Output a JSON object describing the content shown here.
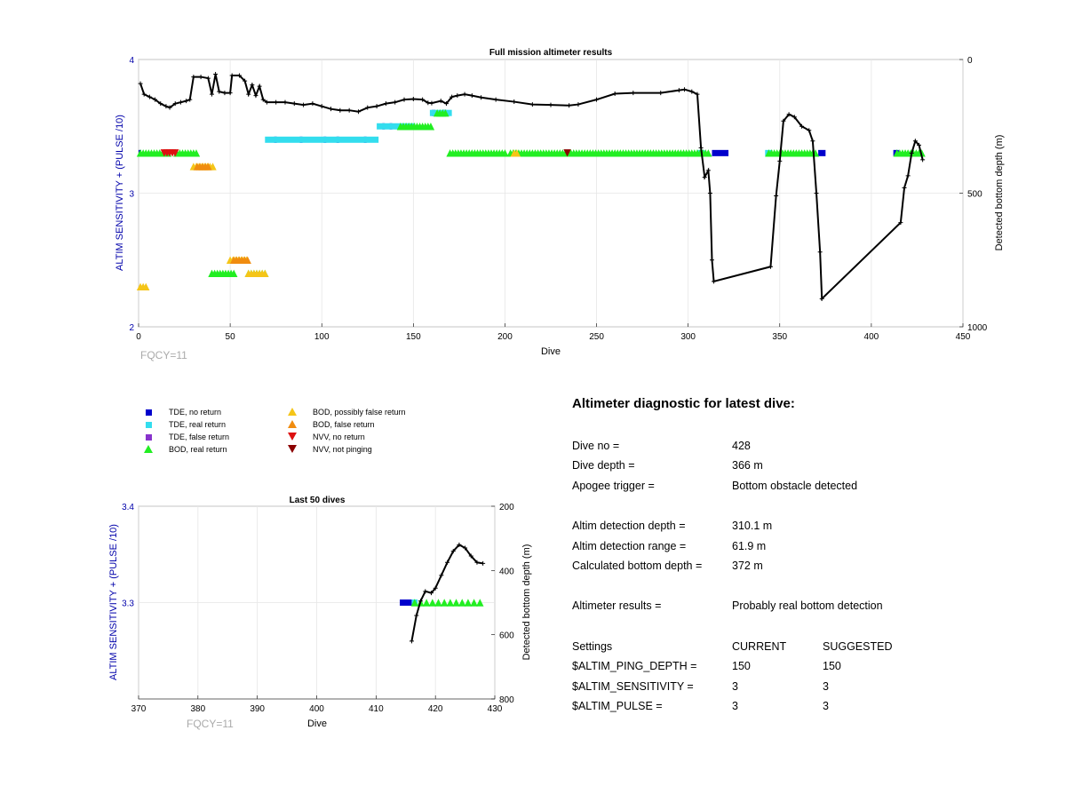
{
  "main_chart": {
    "title": "Full mission altimeter results",
    "xlabel": "Dive",
    "ylabel_left": "ALTIM SENSITIVITY + (PULSE /10)",
    "ylabel_right": "Detected bottom depth (m)",
    "xticks": [
      "0",
      "50",
      "100",
      "150",
      "200",
      "250",
      "300",
      "350",
      "400",
      "450"
    ],
    "yticks_left": [
      "2",
      "3",
      "4"
    ],
    "yticks_right": [
      "0",
      "500",
      "1000"
    ],
    "fqcy": "FQCY=11"
  },
  "bottom_chart": {
    "title": "Last 50 dives",
    "xlabel": "Dive",
    "ylabel_left": "ALTIM SENSITIVITY + (PULSE /10)",
    "ylabel_right": "Detected bottom depth (m)",
    "xticks": [
      "370",
      "380",
      "390",
      "400",
      "410",
      "420",
      "430"
    ],
    "yticks_left": [
      "3.3",
      "3.4"
    ],
    "yticks_right": [
      "200",
      "400",
      "600",
      "800"
    ],
    "fqcy": "FQCY=11"
  },
  "legend": [
    {
      "label": "TDE, no return",
      "symbol": "square",
      "color": "#0000cc"
    },
    {
      "label": "TDE, real return",
      "symbol": "square",
      "color": "#33ddee"
    },
    {
      "label": "TDE, false return",
      "symbol": "square",
      "color": "#8833cc"
    },
    {
      "label": "BOD, real return",
      "symbol": "triangle-up",
      "color": "#22ee22"
    },
    {
      "label": "BOD, possibly false return",
      "symbol": "triangle-up",
      "color": "#f5c518"
    },
    {
      "label": "BOD, false return",
      "symbol": "triangle-up",
      "color": "#f08c10"
    },
    {
      "label": "NVV, no return",
      "symbol": "triangle-down",
      "color": "#dd1111"
    },
    {
      "label": "NVV, not pinging",
      "symbol": "triangle-down",
      "color": "#8b0000"
    }
  ],
  "diagnostic": {
    "title": "Altimeter diagnostic for latest dive:",
    "dive_no_label": "Dive no =",
    "dive_no": "428",
    "dive_depth_label": "Dive depth =",
    "dive_depth": "366 m",
    "apogee_label": "Apogee trigger =",
    "apogee": "Bottom obstacle detected",
    "altim_depth_label": "Altim detection depth =",
    "altim_depth": "310.1 m",
    "altim_range_label": "Altim detection range =",
    "altim_range": "61.9 m",
    "calc_depth_label": "Calculated bottom depth =",
    "calc_depth": "372 m",
    "results_label": "Altimeter results =",
    "results": "Probably real bottom detection",
    "settings_label": "Settings",
    "current_label": "CURRENT",
    "suggested_label": "SUGGESTED",
    "ping_depth_label": "$ALTIM_PING_DEPTH =",
    "ping_depth_current": "150",
    "ping_depth_suggested": "150",
    "sensitivity_label": "$ALTIM_SENSITIVITY =",
    "sensitivity_current": "3",
    "sensitivity_suggested": "3",
    "pulse_label": "$ALTIM_PULSE =",
    "pulse_current": "3",
    "pulse_suggested": "3"
  },
  "chart_data": [
    {
      "type": "scatter",
      "title": "Full mission altimeter results",
      "xlabel": "Dive",
      "ylabel": "ALTIM SENSITIVITY + (PULSE /10)",
      "y2label": "Detected bottom depth (m)",
      "xlim": [
        0,
        450
      ],
      "ylim": [
        2,
        4
      ],
      "y2lim": [
        0,
        1000
      ],
      "grid": true,
      "series": [
        {
          "name": "TDE, no return",
          "color": "#0000cc",
          "segments": [
            [
              0,
              1,
              3.3
            ],
            [
              133,
              134,
              3.5
            ],
            [
              137,
              138,
              3.5
            ],
            [
              160,
              162,
              3.6
            ],
            [
              166,
              168,
              3.6
            ],
            [
              74,
              75,
              3.4
            ],
            [
              88,
              89,
              3.4
            ],
            [
              101,
              102,
              3.4
            ],
            [
              108,
              109,
              3.4
            ],
            [
              123,
              124,
              3.4
            ],
            [
              313,
              322,
              3.3
            ],
            [
              371,
              375,
              3.3
            ],
            [
              412,
              415,
              3.3
            ]
          ]
        },
        {
          "name": "TDE, real return",
          "color": "#33ddee",
          "segments": [
            [
              69,
              131,
              3.4
            ],
            [
              130,
              151,
              3.5
            ],
            [
              159,
              171,
              3.6
            ],
            [
              305,
              309,
              3.3
            ],
            [
              342,
              346,
              3.3
            ]
          ]
        },
        {
          "name": "BOD, real return",
          "color": "#22ee22",
          "segments": [
            [
              1,
              16,
              3.3
            ],
            [
              21,
              32,
              3.3
            ],
            [
              40,
              52,
              2.4
            ],
            [
              60,
              70,
              2.4
            ],
            [
              143,
              160,
              3.5
            ],
            [
              163,
              168,
              3.6
            ],
            [
              170,
              200,
              3.3
            ],
            [
              203,
              312,
              3.3
            ],
            [
              344,
              370,
              3.3
            ],
            [
              414,
              428,
              3.3
            ]
          ]
        },
        {
          "name": "BOD, possibly false return",
          "color": "#f5c518",
          "segments": [
            [
              1,
              4,
              2.3
            ],
            [
              30,
              41,
              3.2
            ],
            [
              50,
              60,
              2.5
            ],
            [
              60,
              70,
              2.4
            ],
            [
              205,
              207,
              3.3
            ]
          ]
        },
        {
          "name": "BOD, false return",
          "color": "#f08c10",
          "segments": [
            [
              32,
              38,
              3.2
            ],
            [
              52,
              60,
              2.5
            ]
          ]
        },
        {
          "name": "NVV, no return",
          "color": "#dd1111",
          "segments": [
            [
              14,
              20,
              3.3
            ]
          ]
        },
        {
          "name": "NVV, not pinging",
          "color": "#8b0000",
          "segments": [
            [
              234,
              235,
              3.3
            ]
          ]
        },
        {
          "name": "Detected bottom depth",
          "axis": "right",
          "color": "#000000",
          "points": [
            [
              1,
              90
            ],
            [
              3,
              130
            ],
            [
              6,
              140
            ],
            [
              9,
              150
            ],
            [
              12,
              165
            ],
            [
              15,
              175
            ],
            [
              17,
              180
            ],
            [
              20,
              165
            ],
            [
              23,
              160
            ],
            [
              26,
              155
            ],
            [
              28,
              150
            ],
            [
              30,
              65
            ],
            [
              34,
              65
            ],
            [
              38,
              70
            ],
            [
              40,
              130
            ],
            [
              42,
              55
            ],
            [
              44,
              120
            ],
            [
              47,
              125
            ],
            [
              50,
              125
            ],
            [
              51,
              60
            ],
            [
              55,
              60
            ],
            [
              58,
              80
            ],
            [
              60,
              130
            ],
            [
              62,
              95
            ],
            [
              64,
              135
            ],
            [
              66,
              100
            ],
            [
              68,
              150
            ],
            [
              70,
              160
            ],
            [
              75,
              160
            ],
            [
              80,
              160
            ],
            [
              85,
              165
            ],
            [
              90,
              170
            ],
            [
              95,
              165
            ],
            [
              100,
              175
            ],
            [
              105,
              185
            ],
            [
              110,
              190
            ],
            [
              115,
              190
            ],
            [
              120,
              195
            ],
            [
              125,
              180
            ],
            [
              130,
              175
            ],
            [
              135,
              165
            ],
            [
              140,
              160
            ],
            [
              145,
              150
            ],
            [
              150,
              148
            ],
            [
              155,
              150
            ],
            [
              158,
              162
            ],
            [
              160,
              163
            ],
            [
              165,
              155
            ],
            [
              168,
              165
            ],
            [
              171,
              140
            ],
            [
              174,
              135
            ],
            [
              178,
              130
            ],
            [
              182,
              135
            ],
            [
              187,
              142
            ],
            [
              195,
              150
            ],
            [
              205,
              158
            ],
            [
              215,
              168
            ],
            [
              225,
              170
            ],
            [
              235,
              172
            ],
            [
              240,
              168
            ],
            [
              250,
              150
            ],
            [
              260,
              128
            ],
            [
              270,
              125
            ],
            [
              285,
              125
            ],
            [
              295,
              115
            ],
            [
              298,
              112
            ],
            [
              302,
              120
            ],
            [
              305,
              130
            ],
            [
              307,
              330
            ],
            [
              309,
              440
            ],
            [
              311,
              415
            ],
            [
              312,
              500
            ],
            [
              313,
              750
            ],
            [
              314,
              830
            ],
            [
              345,
              775
            ],
            [
              348,
              510
            ],
            [
              350,
              380
            ],
            [
              352,
              230
            ],
            [
              355,
              205
            ],
            [
              358,
              215
            ],
            [
              362,
              250
            ],
            [
              366,
              265
            ],
            [
              368,
              305
            ],
            [
              370,
              500
            ],
            [
              372,
              720
            ],
            [
              373,
              895
            ],
            [
              416,
              610
            ],
            [
              418,
              480
            ],
            [
              420,
              435
            ],
            [
              422,
              350
            ],
            [
              424,
              305
            ],
            [
              426,
              320
            ],
            [
              428,
              375
            ]
          ]
        }
      ]
    },
    {
      "type": "scatter",
      "title": "Last 50 dives",
      "xlabel": "Dive",
      "ylabel": "ALTIM SENSITIVITY + (PULSE /10)",
      "y2label": "Detected bottom depth (m)",
      "xlim": [
        370,
        430
      ],
      "ylim": [
        3.2,
        3.4
      ],
      "y2lim": [
        200,
        800
      ],
      "grid": true,
      "series": [
        {
          "name": "TDE, no return",
          "color": "#0000cc",
          "segments": [
            [
              414,
              416,
              3.3
            ]
          ]
        },
        {
          "name": "TDE, real return",
          "color": "#33ddee",
          "segments": [
            [
              416,
              417,
              3.3
            ]
          ]
        },
        {
          "name": "BOD, real return",
          "color": "#22ee22",
          "points": [
            [
              416.5,
              3.3
            ],
            [
              417.5,
              3.3
            ],
            [
              418.5,
              3.3
            ],
            [
              419.5,
              3.3
            ],
            [
              420.5,
              3.3
            ],
            [
              421.5,
              3.3
            ],
            [
              422.5,
              3.3
            ],
            [
              423.5,
              3.3
            ],
            [
              424.5,
              3.3
            ],
            [
              425.5,
              3.3
            ],
            [
              426.5,
              3.3
            ],
            [
              427.5,
              3.3
            ]
          ]
        },
        {
          "name": "Detected bottom depth",
          "axis": "right",
          "color": "#000000",
          "points": [
            [
              416,
              620
            ],
            [
              416.8,
              540
            ],
            [
              417.5,
              495
            ],
            [
              418.3,
              465
            ],
            [
              419.3,
              470
            ],
            [
              420,
              455
            ],
            [
              421,
              415
            ],
            [
              422,
              375
            ],
            [
              423,
              340
            ],
            [
              424,
              320
            ],
            [
              425,
              330
            ],
            [
              426,
              355
            ],
            [
              427,
              375
            ],
            [
              428,
              378
            ]
          ]
        }
      ]
    }
  ]
}
